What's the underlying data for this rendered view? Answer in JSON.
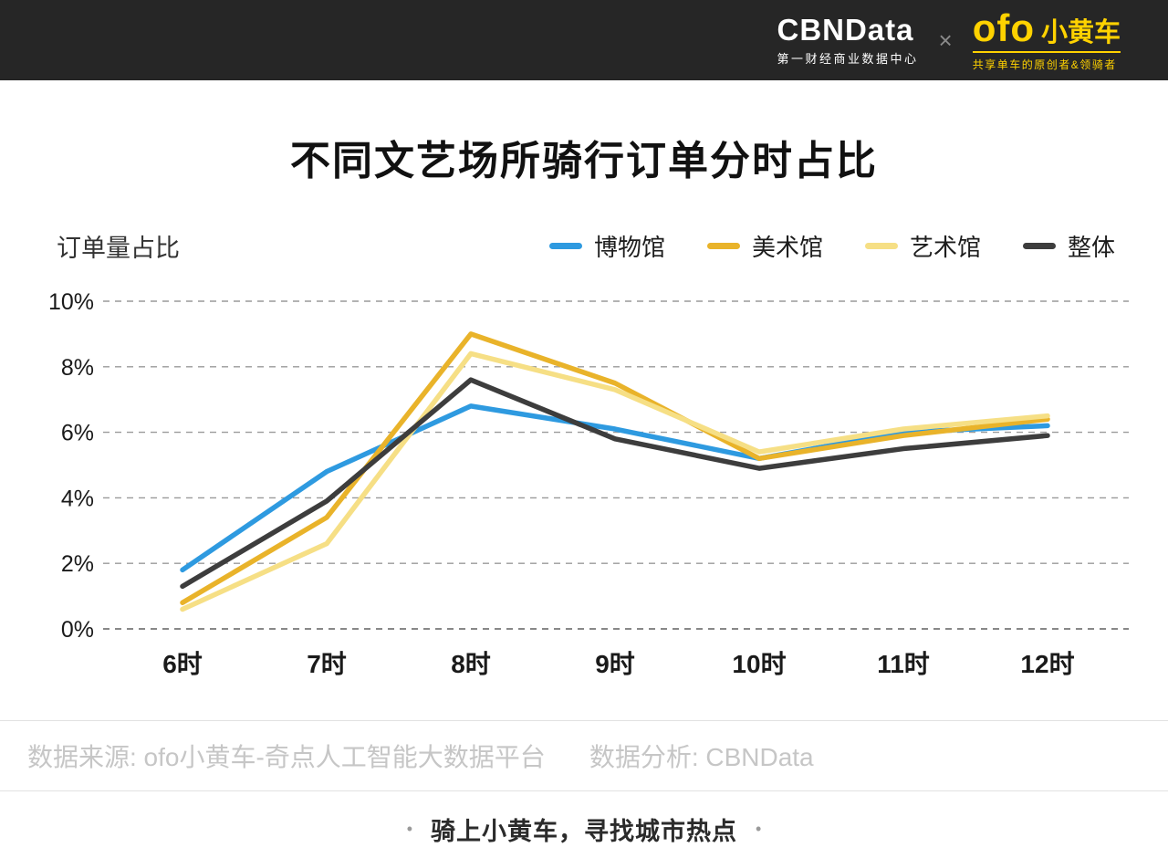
{
  "header": {
    "brand_primary": "CBNData",
    "brand_primary_sub": "第一财经商业数据中心",
    "separator": "×",
    "brand_secondary_logo": "ofo",
    "brand_secondary_name": "小黄车",
    "brand_secondary_tagline": "共享单车的原创者&领骑者",
    "colors": {
      "bar_bg": "#262626",
      "ofo_yellow": "#ffd200"
    }
  },
  "title": "不同文艺场所骑行订单分时占比",
  "chart_data": {
    "type": "line",
    "title": "不同文艺场所骑行订单分时占比",
    "ylabel": "订单量占比",
    "xlabel": "",
    "categories": [
      "6时",
      "7时",
      "8时",
      "9时",
      "10时",
      "11时",
      "12时"
    ],
    "yticks": [
      0,
      2,
      4,
      6,
      8,
      10
    ],
    "ytick_suffix": "%",
    "ylim": [
      0,
      10
    ],
    "grid": "dashed-horizontal",
    "legend_position": "top-right",
    "series": [
      {
        "name": "博物馆",
        "color": "#2e9ae0",
        "values": [
          1.8,
          4.8,
          6.8,
          6.1,
          5.2,
          6.0,
          6.2
        ]
      },
      {
        "name": "美术馆",
        "color": "#e9b32a",
        "values": [
          0.8,
          3.4,
          9.0,
          7.5,
          5.2,
          5.9,
          6.4
        ]
      },
      {
        "name": "艺术馆",
        "color": "#f6df85",
        "values": [
          0.6,
          2.6,
          8.4,
          7.3,
          5.4,
          6.1,
          6.5
        ]
      },
      {
        "name": "整体",
        "color": "#3d3d3d",
        "values": [
          1.3,
          3.9,
          7.6,
          5.8,
          4.9,
          5.5,
          5.9
        ]
      }
    ],
    "line_width": 5.5,
    "gridline_color": "#9a9a9a"
  },
  "footer": {
    "source_left": "数据来源: ofo小黄车-奇点人工智能大数据平台",
    "source_right": "数据分析: CBNData",
    "tagline": "骑上小黄车，寻找城市热点",
    "tagline_dot": "•"
  }
}
